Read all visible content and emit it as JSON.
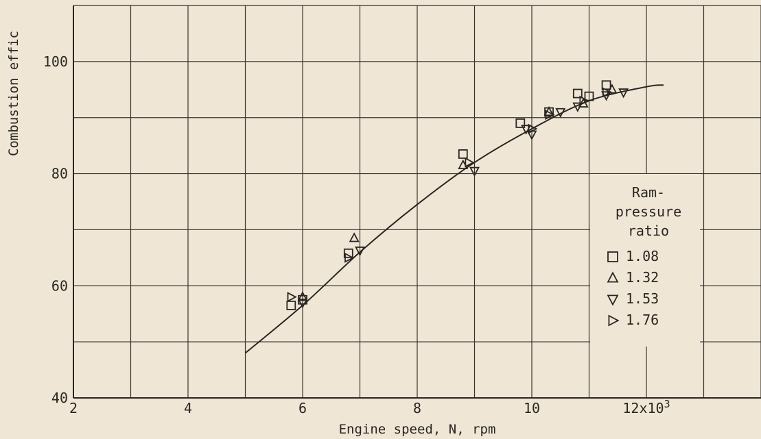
{
  "chart_data": {
    "type": "scatter",
    "xlabel": "Engine speed, N, rpm",
    "ylabel": "Combustion effic",
    "x_tick_labels": [
      "2",
      "4",
      "6",
      "8",
      "10",
      "12x10"
    ],
    "x_tick_exponent": "3",
    "x_tick_values": [
      2,
      4,
      6,
      8,
      10,
      12
    ],
    "y_tick_labels": [
      "40",
      "60",
      "80",
      "100"
    ],
    "y_tick_values": [
      40,
      60,
      80,
      100
    ],
    "xlim": [
      2,
      14
    ],
    "ylim": [
      40,
      110
    ],
    "grid": true,
    "legend_title": [
      "Ram-",
      "pressure",
      "ratio"
    ],
    "legend_placement": "right",
    "series": [
      {
        "name": "1.08",
        "marker": "square",
        "points": [
          [
            5.8,
            56.5
          ],
          [
            6.0,
            57.5
          ],
          [
            6.8,
            65.8
          ],
          [
            8.8,
            83.5
          ],
          [
            9.8,
            89.0
          ],
          [
            10.3,
            91.0
          ],
          [
            10.8,
            94.3
          ],
          [
            11.0,
            93.8
          ],
          [
            11.3,
            95.8
          ]
        ]
      },
      {
        "name": "1.32",
        "marker": "triangle-up",
        "points": [
          [
            6.0,
            58.0
          ],
          [
            6.9,
            68.5
          ],
          [
            8.8,
            81.5
          ],
          [
            10.3,
            91.0
          ],
          [
            10.9,
            92.5
          ],
          [
            11.4,
            95.0
          ]
        ]
      },
      {
        "name": "1.53",
        "marker": "triangle-down",
        "points": [
          [
            6.0,
            57.0
          ],
          [
            7.0,
            66.3
          ],
          [
            9.0,
            80.5
          ],
          [
            9.9,
            88.0
          ],
          [
            10.0,
            87.0
          ],
          [
            10.5,
            91.0
          ],
          [
            10.8,
            92.0
          ],
          [
            11.3,
            94.0
          ],
          [
            11.6,
            94.5
          ]
        ]
      },
      {
        "name": "1.76",
        "marker": "triangle-right",
        "points": [
          [
            5.8,
            58.0
          ],
          [
            6.8,
            65.0
          ],
          [
            8.9,
            82.0
          ],
          [
            10.0,
            88.0
          ],
          [
            10.3,
            90.5
          ],
          [
            10.9,
            93.0
          ],
          [
            11.3,
            94.5
          ]
        ]
      }
    ],
    "curve": [
      [
        5.0,
        48.0
      ],
      [
        6.0,
        56.5
      ],
      [
        7.0,
        66.0
      ],
      [
        8.0,
        74.5
      ],
      [
        9.0,
        82.0
      ],
      [
        10.0,
        88.0
      ],
      [
        11.0,
        93.0
      ],
      [
        12.0,
        95.5
      ],
      [
        12.3,
        95.8
      ]
    ]
  }
}
